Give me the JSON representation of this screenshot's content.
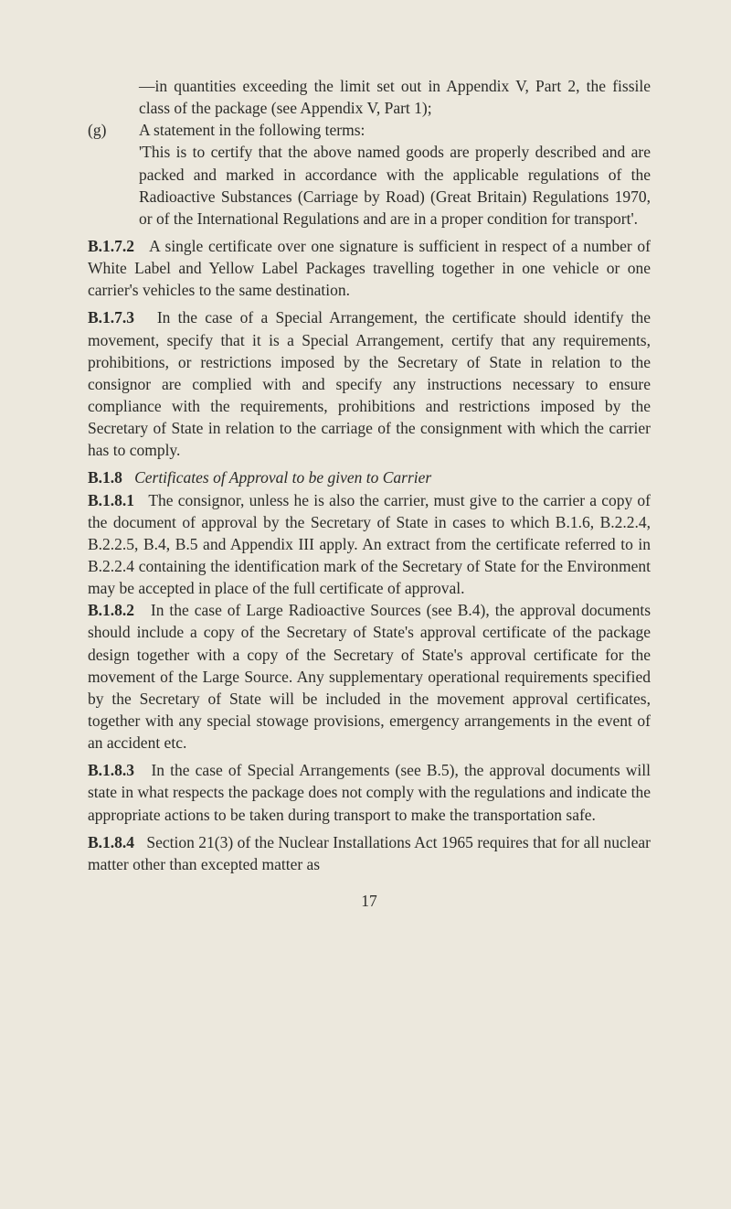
{
  "colors": {
    "background": "#ece8dd",
    "text": "#2b2b28"
  },
  "typography": {
    "font_family": "Times New Roman",
    "body_fontsize_pt": 13,
    "line_height": 1.38
  },
  "page_number": "17",
  "content": {
    "p0": "—in quantities exceeding the limit set out in Appendix V, Part 2, the fissile class of the package (see Appendix V, Part 1);",
    "g_marker": "(g)",
    "g_line1": "A statement in the following terms:",
    "g_line2": "'This is to certify that the above named goods are properly described and are packed and marked in accordance with the applicable regulations of the Radioactive Substances (Carriage by Road) (Great Britain) Regulations 1970, or of the International Regulations and are in a proper condition for transport'.",
    "b172_ref": "B.1.7.2",
    "b172": "A single certificate over one signature is sufficient in respect of a number of White Label and Yellow Label Packages travelling together in one vehicle or one carrier's vehicles to the same destination.",
    "b173_ref": "B.1.7.3",
    "b173": "In the case of a Special Arrangement, the certificate should identify the movement, specify that it is a Special Arrangement, certify that any requirements, prohibitions, or restrictions imposed by the Secretary of State in relation to the consignor are complied with and specify any instructions necessary to ensure compliance with the requirements, prohibitions and restrictions imposed by the Secretary of State in relation to the carriage of the consignment with which the carrier has to comply.",
    "b18_ref": "B.1.8",
    "b18_title": "Certificates of Approval to be given to Carrier",
    "b181_ref": "B.1.8.1",
    "b181": "The consignor, unless he is also the carrier, must give to the carrier a copy of the document of approval by the Secretary of State in cases to which B.1.6, B.2.2.4, B.2.2.5, B.4, B.5 and Appendix III apply. An extract from the certificate referred to in B.2.2.4 containing the identification mark of the Secretary of State for the Environment may be accepted in place of the full certificate of approval.",
    "b182_ref": "B.1.8.2",
    "b182": "In the case of Large Radioactive Sources (see B.4), the approval documents should include a copy of the Secretary of State's approval certificate of the package design together with a copy of the Secretary of State's approval certificate for the movement of the Large Source. Any supplementary operational requirements specified by the Secretary of State will be included in the movement approval certificates, together with any special stowage provisions, emergency arrangements in the event of an accident etc.",
    "b183_ref": "B.1.8.3",
    "b183": "In the case of Special Arrangements (see B.5), the approval documents will state in what respects the package does not comply with the regulations and indicate the appropriate actions to be taken during transport to make the transportation safe.",
    "b184_ref": "B.1.8.4",
    "b184": "Section 21(3) of the Nuclear Installations Act 1965 requires that for all nuclear matter other than excepted matter as"
  }
}
